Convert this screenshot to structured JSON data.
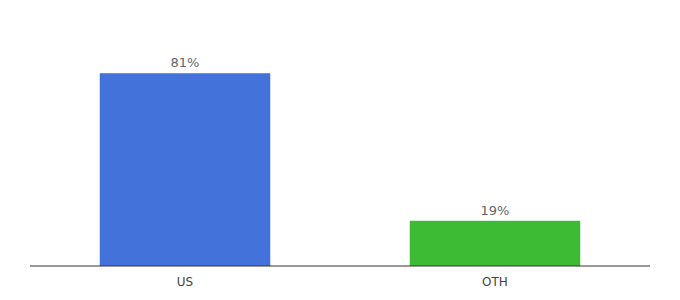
{
  "chart_data": {
    "type": "bar",
    "categories": [
      "US",
      "OTH"
    ],
    "values": [
      81,
      19
    ],
    "value_labels": [
      "81%",
      "19%"
    ],
    "colors": [
      "#4472db",
      "#3dbb35"
    ],
    "ylim": [
      0,
      100
    ],
    "data_labels": true,
    "tick_labels": "x",
    "grid": false
  }
}
